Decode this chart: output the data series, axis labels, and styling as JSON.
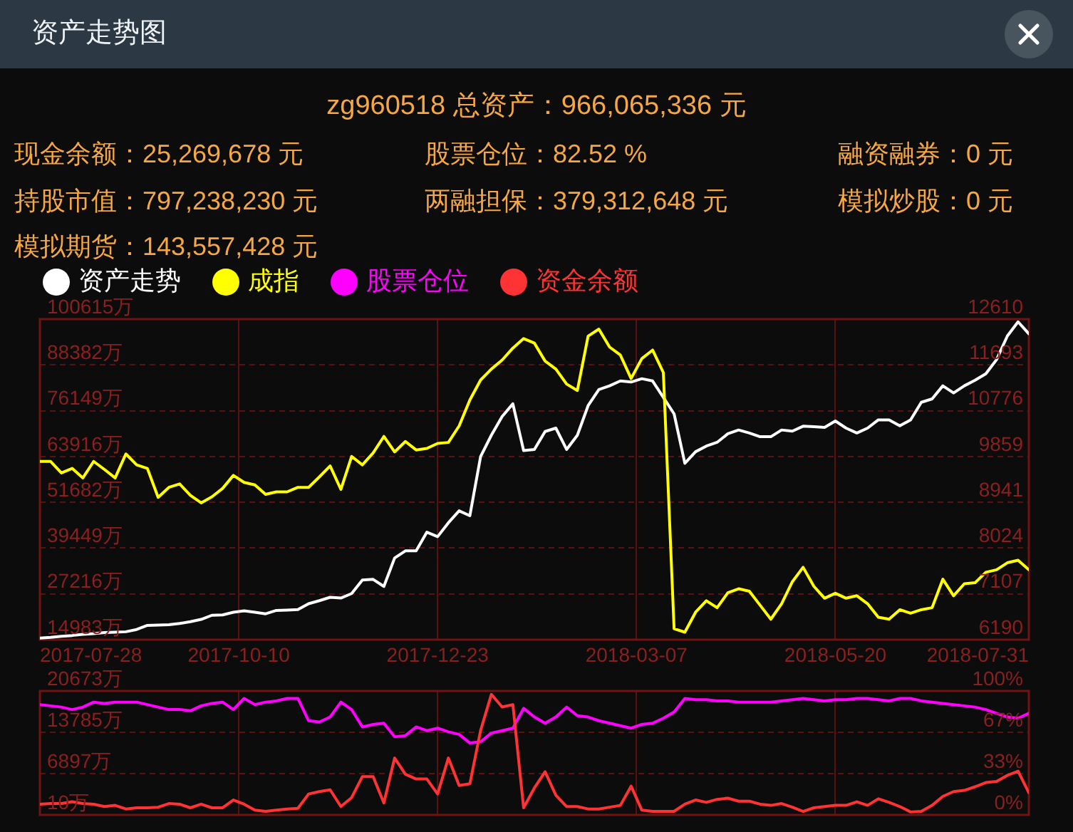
{
  "chart_data": [
    {
      "type": "line",
      "title": "资产走势图",
      "subtitle": "zg960518 总资产：966,065,336 元",
      "annotations": [
        "现金余额：25,269,678 元",
        "股票仓位：82.52 %",
        "融资融券：0 元",
        "持股市值：797,238,230 元",
        "两融担保：379,312,648 元",
        "模拟炒股：0 元",
        "模拟期货：143,557,428 元"
      ],
      "x": [
        "2017-07-28",
        "2017-08-01",
        "2017-08-05",
        "2017-08-09",
        "2017-08-13",
        "2017-08-17",
        "2017-08-21",
        "2017-08-25",
        "2017-08-29",
        "2017-09-02",
        "2017-09-06",
        "2017-09-10",
        "2017-09-14",
        "2017-09-18",
        "2017-09-22",
        "2017-09-26",
        "2017-09-30",
        "2017-10-04",
        "2017-10-08",
        "2017-10-12",
        "2017-10-16",
        "2017-10-20",
        "2017-10-24",
        "2017-10-28",
        "2017-11-01",
        "2017-11-05",
        "2017-11-09",
        "2017-11-13",
        "2017-11-17",
        "2017-11-21",
        "2017-11-25",
        "2017-11-29",
        "2017-12-03",
        "2017-12-07",
        "2017-12-11",
        "2017-12-15",
        "2017-12-19",
        "2017-12-23",
        "2017-12-27",
        "2017-12-31",
        "2018-01-04",
        "2018-01-08",
        "2018-01-12",
        "2018-01-16",
        "2018-01-20",
        "2018-01-24",
        "2018-01-28",
        "2018-02-01",
        "2018-02-05",
        "2018-02-09",
        "2018-02-13",
        "2018-02-17",
        "2018-02-21",
        "2018-02-25",
        "2018-03-01",
        "2018-03-05",
        "2018-03-09",
        "2018-03-13",
        "2018-03-17",
        "2018-03-21",
        "2018-03-25",
        "2018-03-29",
        "2018-04-02",
        "2018-04-06",
        "2018-04-10",
        "2018-04-14",
        "2018-04-18",
        "2018-04-22",
        "2018-04-26",
        "2018-04-30",
        "2018-05-04",
        "2018-05-08",
        "2018-05-12",
        "2018-05-16",
        "2018-05-20",
        "2018-05-24",
        "2018-05-28",
        "2018-06-01",
        "2018-06-05",
        "2018-06-09",
        "2018-06-13",
        "2018-06-17",
        "2018-06-21",
        "2018-06-25",
        "2018-06-29",
        "2018-07-03",
        "2018-07-07",
        "2018-07-11",
        "2018-07-15",
        "2018-07-19",
        "2018-07-23",
        "2018-07-27",
        "2018-07-31"
      ],
      "xlim": [
        "2017-07-28",
        "2018-07-31"
      ],
      "xticks": [
        "2017-07-28",
        "2017-10-10",
        "2017-12-23",
        "2018-03-07",
        "2018-05-20",
        "2018-07-31"
      ],
      "ylim": [
        14983,
        100615
      ],
      "yticks": [
        {
          "value": 14983,
          "label": "14983万"
        },
        {
          "value": 27216,
          "label": "27216万"
        },
        {
          "value": 39449,
          "label": "39449万"
        },
        {
          "value": 51682,
          "label": "51682万"
        },
        {
          "value": 63916,
          "label": "63916万"
        },
        {
          "value": 76149,
          "label": "76149万"
        },
        {
          "value": 88382,
          "label": "88382万"
        },
        {
          "value": 100615,
          "label": "100615万"
        }
      ],
      "y2lim": [
        6190,
        12610
      ],
      "y2ticks": [
        6190,
        7107,
        8024,
        8941,
        9859,
        10776,
        11693,
        12610
      ],
      "series": [
        {
          "name": "资产走势",
          "color": "#ffffff",
          "values": [
            15400,
            15600,
            15900,
            16100,
            16400,
            16600,
            16900,
            17000,
            17100,
            17700,
            18800,
            18900,
            19000,
            19300,
            19800,
            20400,
            21500,
            21600,
            22300,
            22700,
            22300,
            21900,
            22800,
            22900,
            23000,
            24600,
            25400,
            26300,
            26100,
            27300,
            30900,
            31100,
            29200,
            36800,
            38700,
            38700,
            43700,
            42500,
            46200,
            49400,
            48100,
            63900,
            69600,
            74600,
            78000,
            65500,
            65800,
            70600,
            71500,
            65800,
            69600,
            77500,
            81800,
            82800,
            84100,
            83800,
            84700,
            84100,
            79700,
            75300,
            62100,
            65200,
            66700,
            67700,
            70000,
            71000,
            70200,
            69200,
            69200,
            71000,
            70700,
            72000,
            71900,
            71700,
            73400,
            71500,
            70200,
            71500,
            73700,
            73700,
            72100,
            73700,
            78400,
            79300,
            82800,
            80900,
            82800,
            84300,
            86000,
            89800,
            96100,
            99900,
            96700
          ]
        },
        {
          "name": "成指",
          "color": "#ffff00",
          "axis": "y2",
          "values": [
            9760,
            9760,
            9530,
            9620,
            9430,
            9760,
            9600,
            9430,
            9910,
            9690,
            9620,
            9040,
            9240,
            9310,
            9080,
            8930,
            9050,
            9220,
            9480,
            9340,
            9290,
            9100,
            9150,
            9150,
            9240,
            9240,
            9450,
            9670,
            9200,
            9860,
            9690,
            9930,
            10260,
            9950,
            10160,
            9990,
            10020,
            10120,
            10140,
            10470,
            10990,
            11390,
            11610,
            11790,
            12030,
            12220,
            12130,
            11770,
            11610,
            11310,
            11180,
            12270,
            12410,
            12050,
            11890,
            11420,
            11820,
            11990,
            11540,
            6410,
            6340,
            6740,
            6970,
            6830,
            7130,
            7210,
            7160,
            6880,
            6600,
            6910,
            7350,
            7640,
            7260,
            7020,
            7120,
            7020,
            7070,
            6910,
            6640,
            6600,
            6790,
            6720,
            6790,
            6830,
            7400,
            7070,
            7310,
            7330,
            7540,
            7590,
            7730,
            7780,
            7590
          ]
        }
      ],
      "grid": true,
      "legend": "top left",
      "marker": "none",
      "line_style": "solid"
    },
    {
      "type": "line",
      "x": [
        "2017-07-28",
        "2017-08-01",
        "2017-08-05",
        "2017-08-09",
        "2017-08-13",
        "2017-08-17",
        "2017-08-21",
        "2017-08-25",
        "2017-08-29",
        "2017-09-02",
        "2017-09-06",
        "2017-09-10",
        "2017-09-14",
        "2017-09-18",
        "2017-09-22",
        "2017-09-26",
        "2017-09-30",
        "2017-10-04",
        "2017-10-08",
        "2017-10-12",
        "2017-10-16",
        "2017-10-20",
        "2017-10-24",
        "2017-10-28",
        "2017-11-01",
        "2017-11-05",
        "2017-11-09",
        "2017-11-13",
        "2017-11-17",
        "2017-11-21",
        "2017-11-25",
        "2017-11-29",
        "2017-12-03",
        "2017-12-07",
        "2017-12-11",
        "2017-12-15",
        "2017-12-19",
        "2017-12-23",
        "2017-12-27",
        "2017-12-31",
        "2018-01-04",
        "2018-01-08",
        "2018-01-12",
        "2018-01-16",
        "2018-01-20",
        "2018-01-24",
        "2018-01-28",
        "2018-02-01",
        "2018-02-05",
        "2018-02-09",
        "2018-02-13",
        "2018-02-17",
        "2018-02-21",
        "2018-02-25",
        "2018-03-01",
        "2018-03-05",
        "2018-03-09",
        "2018-03-13",
        "2018-03-17",
        "2018-03-21",
        "2018-03-25",
        "2018-03-29",
        "2018-04-02",
        "2018-04-06",
        "2018-04-10",
        "2018-04-14",
        "2018-04-18",
        "2018-04-22",
        "2018-04-26",
        "2018-04-30",
        "2018-05-04",
        "2018-05-08",
        "2018-05-12",
        "2018-05-16",
        "2018-05-20",
        "2018-05-24",
        "2018-05-28",
        "2018-06-01",
        "2018-06-05",
        "2018-06-09",
        "2018-06-13",
        "2018-06-17",
        "2018-06-21",
        "2018-06-25",
        "2018-06-29",
        "2018-07-03",
        "2018-07-07",
        "2018-07-11",
        "2018-07-15",
        "2018-07-19",
        "2018-07-23",
        "2018-07-27",
        "2018-07-31"
      ],
      "xlim": [
        "2017-07-28",
        "2018-07-31"
      ],
      "xticks": [
        "2017-07-28",
        "2017-10-10",
        "2017-12-23",
        "2018-03-07",
        "2018-05-20",
        "2018-07-31"
      ],
      "tick_labels": "y",
      "ylim": [
        10,
        20673
      ],
      "yticks": [
        {
          "value": 10,
          "label": "10万"
        },
        {
          "value": 6897,
          "label": "6897万"
        },
        {
          "value": 13785,
          "label": "13785万"
        },
        {
          "value": 20673,
          "label": "20673万"
        }
      ],
      "y2lim": [
        0,
        100
      ],
      "y2ticks": [
        {
          "value": 0,
          "label": "0%"
        },
        {
          "value": 33.3,
          "label": "33%"
        },
        {
          "value": 66.7,
          "label": "67%"
        },
        {
          "value": 100,
          "label": "100%"
        }
      ],
      "series": [
        {
          "name": "股票仓位",
          "color": "#ff00ff",
          "axis": "y2",
          "values": [
            89,
            88,
            87,
            85,
            87,
            91,
            90,
            91,
            91,
            91,
            89,
            87,
            85,
            85,
            84,
            88,
            90,
            91,
            85,
            94,
            89,
            91,
            92,
            94,
            94,
            76,
            75,
            79,
            91,
            85,
            71,
            73,
            74,
            63,
            64,
            71,
            68,
            70,
            67,
            65,
            58,
            59,
            66,
            68,
            70,
            86,
            79,
            74,
            79,
            87,
            80,
            79,
            76,
            74,
            72,
            70,
            73,
            74,
            78,
            83,
            94,
            93,
            93,
            92,
            92,
            91,
            91,
            91,
            91,
            92,
            93,
            94,
            93,
            92,
            93,
            93,
            94,
            94,
            93,
            92,
            94,
            94,
            92,
            91,
            90,
            89,
            88,
            87,
            85,
            82,
            79,
            78,
            82
          ]
        },
        {
          "name": "资金余额",
          "color": "#ff3333",
          "values": [
            1800,
            1900,
            1900,
            2200,
            1900,
            1800,
            1400,
            1600,
            1000,
            1200,
            1200,
            1300,
            1900,
            1800,
            1200,
            1800,
            1200,
            1200,
            2500,
            1800,
            800,
            600,
            800,
            1000,
            1100,
            3500,
            3900,
            4200,
            1400,
            2900,
            6400,
            6400,
            2000,
            9500,
            6800,
            6000,
            6000,
            3500,
            9500,
            4900,
            5200,
            14100,
            20100,
            18000,
            18400,
            1200,
            4500,
            7200,
            3300,
            1400,
            1400,
            1000,
            1000,
            1300,
            1600,
            4800,
            800,
            600,
            600,
            600,
            1800,
            2500,
            2100,
            2600,
            2800,
            2300,
            2300,
            1800,
            1600,
            1900,
            1300,
            600,
            1200,
            1400,
            1600,
            1600,
            2200,
            1600,
            2700,
            2100,
            1400,
            500,
            600,
            1600,
            3100,
            3900,
            4100,
            4700,
            5400,
            5600,
            6600,
            7300,
            3700
          ]
        }
      ],
      "grid": true,
      "legend": "top left",
      "marker": "none",
      "line_style": "solid"
    }
  ]
}
